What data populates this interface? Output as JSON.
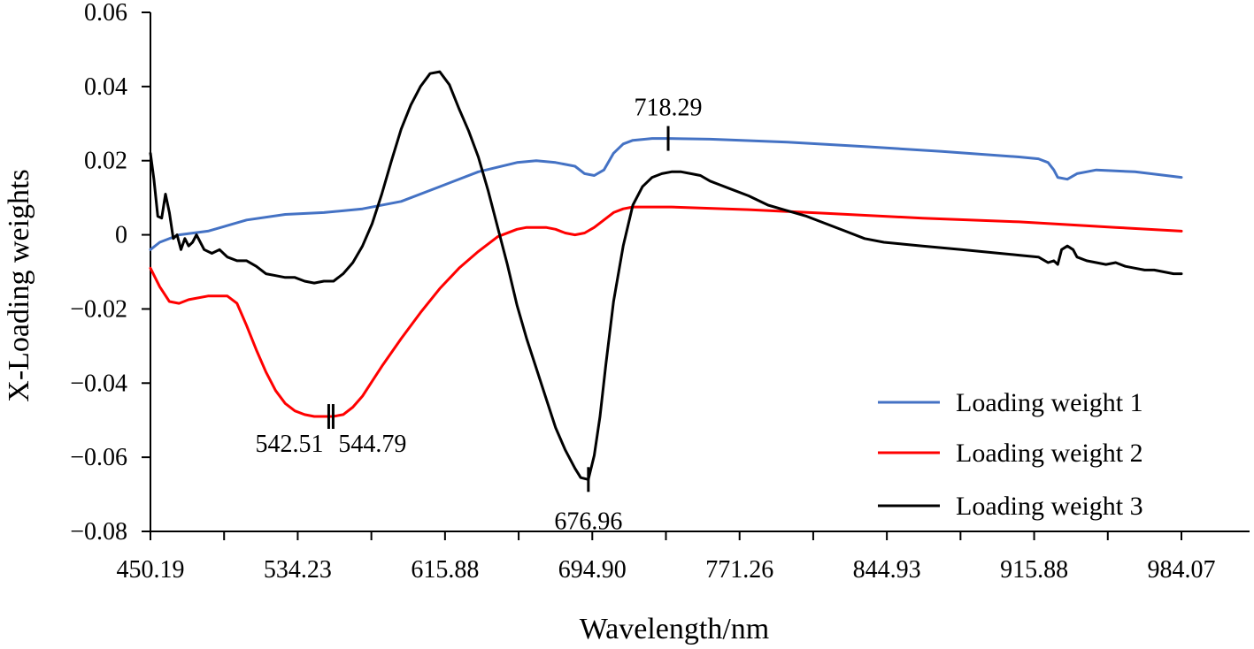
{
  "chart_data": {
    "type": "line",
    "xlabel": "Wavelength/nm",
    "ylabel": "X-Loading weights",
    "xlim": [
      450.19,
      984.07
    ],
    "ylim": [
      -0.08,
      0.06
    ],
    "x_ticks": [
      "450.19",
      "534.23",
      "615.88",
      "694.90",
      "771.26",
      "844.93",
      "915.88",
      "984.07"
    ],
    "y_ticks": [
      {
        "value": 0.06,
        "label": "0.06"
      },
      {
        "value": 0.04,
        "label": "0.04"
      },
      {
        "value": 0.02,
        "label": "0.02"
      },
      {
        "value": 0,
        "label": "0"
      },
      {
        "value": -0.02,
        "label": "−0.02"
      },
      {
        "value": -0.04,
        "label": "−0.04"
      },
      {
        "value": -0.06,
        "label": "−0.06"
      },
      {
        "value": -0.08,
        "label": "−0.08"
      }
    ],
    "grid": false,
    "legend_position": "bottom-right",
    "series": [
      {
        "name": "Loading weight 1",
        "color": "#4472C4",
        "x": [
          450.19,
          455,
          465,
          480,
          500,
          520,
          540,
          560,
          580,
          600,
          620,
          640,
          650,
          660,
          665,
          670,
          675,
          680,
          685,
          690,
          695,
          700,
          710,
          718.29,
          740,
          780,
          820,
          860,
          900,
          910,
          915,
          918,
          920,
          925,
          930,
          935,
          940,
          960,
          984.07
        ],
        "y": [
          -0.004,
          -0.002,
          0.0,
          0.001,
          0.004,
          0.0055,
          0.006,
          0.007,
          0.009,
          0.013,
          0.017,
          0.0195,
          0.02,
          0.0195,
          0.019,
          0.0185,
          0.0165,
          0.016,
          0.0175,
          0.022,
          0.0245,
          0.0255,
          0.026,
          0.026,
          0.0258,
          0.025,
          0.0238,
          0.0225,
          0.021,
          0.0205,
          0.0195,
          0.0175,
          0.0155,
          0.015,
          0.0165,
          0.017,
          0.0175,
          0.017,
          0.0155
        ]
      },
      {
        "name": "Loading weight 2",
        "color": "#FF0000",
        "x": [
          450.19,
          455,
          460,
          465,
          470,
          480,
          490,
          495,
          500,
          505,
          510,
          515,
          520,
          525,
          530,
          535,
          542.51,
          544.79,
          550,
          555,
          560,
          565,
          570,
          580,
          590,
          600,
          610,
          620,
          630,
          640,
          645,
          650,
          655,
          660,
          665,
          670,
          675,
          680,
          685,
          690,
          695,
          700,
          720,
          760,
          800,
          850,
          900,
          950,
          984.07
        ],
        "y": [
          -0.009,
          -0.014,
          -0.018,
          -0.0185,
          -0.0175,
          -0.0165,
          -0.0165,
          -0.0185,
          -0.0245,
          -0.031,
          -0.037,
          -0.042,
          -0.0455,
          -0.0475,
          -0.0485,
          -0.049,
          -0.049,
          -0.049,
          -0.0485,
          -0.0465,
          -0.0435,
          -0.0395,
          -0.0355,
          -0.028,
          -0.021,
          -0.0145,
          -0.009,
          -0.0045,
          -0.0005,
          0.0015,
          0.002,
          0.002,
          0.002,
          0.0015,
          0.0005,
          0.0,
          0.0005,
          0.002,
          0.004,
          0.006,
          0.007,
          0.0075,
          0.0075,
          0.0068,
          0.0058,
          0.0045,
          0.0035,
          0.002,
          0.001
        ]
      },
      {
        "name": "Loading weight 3",
        "color": "#000000",
        "x": [
          450.19,
          452,
          454,
          456,
          458,
          460,
          462,
          464,
          466,
          468,
          470,
          472,
          474,
          478,
          482,
          486,
          490,
          495,
          500,
          505,
          510,
          515,
          520,
          525,
          530,
          535,
          540,
          545,
          550,
          555,
          560,
          565,
          570,
          575,
          580,
          585,
          590,
          595,
          600,
          605,
          610,
          615,
          620,
          625,
          630,
          635,
          640,
          645,
          650,
          655,
          660,
          665,
          670,
          673,
          676.96,
          680,
          683,
          686,
          690,
          695,
          700,
          705,
          710,
          715,
          720,
          725,
          730,
          735,
          740,
          745,
          750,
          760,
          770,
          780,
          790,
          800,
          810,
          820,
          830,
          840,
          850,
          860,
          870,
          880,
          890,
          900,
          910,
          915,
          918,
          920,
          922,
          925,
          928,
          930,
          935,
          940,
          945,
          950,
          955,
          960,
          965,
          970,
          975,
          980,
          984.07
        ],
        "y": [
          0.022,
          0.015,
          0.005,
          0.0045,
          0.011,
          0.006,
          -0.001,
          0.0,
          -0.004,
          -0.001,
          -0.003,
          -0.002,
          0.0,
          -0.004,
          -0.005,
          -0.004,
          -0.006,
          -0.007,
          -0.007,
          -0.0085,
          -0.0105,
          -0.011,
          -0.0115,
          -0.0115,
          -0.0125,
          -0.013,
          -0.0125,
          -0.0125,
          -0.0105,
          -0.0075,
          -0.003,
          0.003,
          0.011,
          0.02,
          0.0285,
          0.035,
          0.04,
          0.0435,
          0.044,
          0.0405,
          0.034,
          0.028,
          0.021,
          0.012,
          0.002,
          -0.008,
          -0.019,
          -0.028,
          -0.036,
          -0.044,
          -0.052,
          -0.058,
          -0.063,
          -0.0655,
          -0.066,
          -0.0595,
          -0.049,
          -0.035,
          -0.018,
          -0.003,
          0.008,
          0.013,
          0.0155,
          0.0165,
          0.017,
          0.017,
          0.0165,
          0.016,
          0.0145,
          0.0135,
          0.0125,
          0.0105,
          0.008,
          0.0065,
          0.005,
          0.003,
          0.001,
          -0.001,
          -0.002,
          -0.0025,
          -0.003,
          -0.0035,
          -0.004,
          -0.0045,
          -0.005,
          -0.0055,
          -0.006,
          -0.0075,
          -0.007,
          -0.008,
          -0.004,
          -0.003,
          -0.004,
          -0.006,
          -0.007,
          -0.0075,
          -0.008,
          -0.0075,
          -0.0085,
          -0.009,
          -0.0095,
          -0.0095,
          -0.01,
          -0.0105,
          -0.0105
        ]
      }
    ],
    "annotations": [
      {
        "label": "718.29",
        "x": 718.29,
        "series": 0,
        "text_pos": "above"
      },
      {
        "label": "542.51",
        "x": 542.51,
        "series": 1,
        "text_pos": "below-left"
      },
      {
        "label": "544.79",
        "x": 544.79,
        "series": 1,
        "text_pos": "below-right"
      },
      {
        "label": "676.96",
        "x": 676.96,
        "series": 2,
        "text_pos": "below"
      }
    ]
  }
}
